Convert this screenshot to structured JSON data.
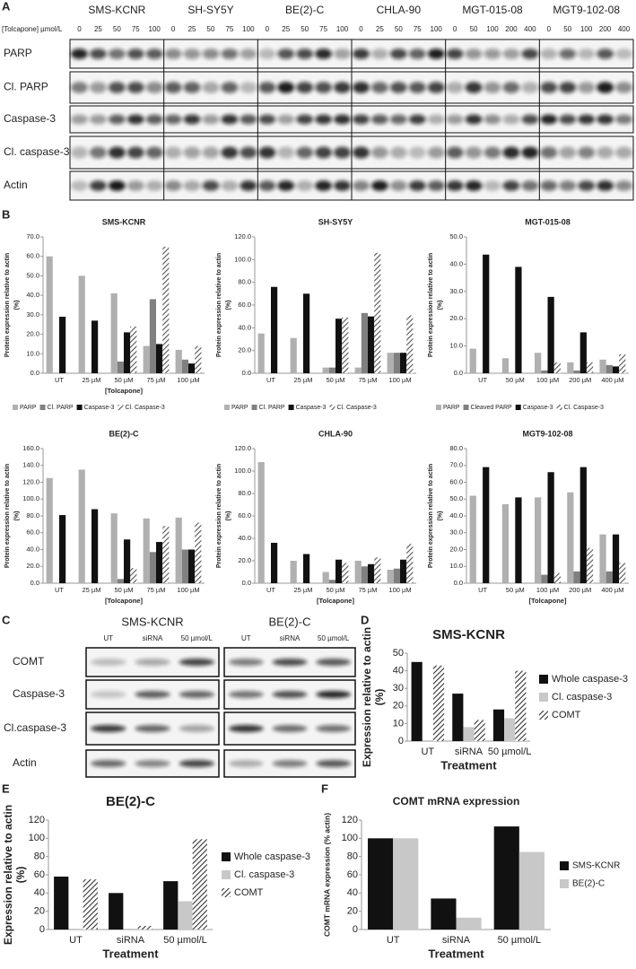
{
  "panel_labels": [
    "A",
    "B",
    "C",
    "D",
    "E",
    "F"
  ],
  "blot_a": {
    "dose_label": "[Tolcapone] µmol/L",
    "cell_lines": [
      {
        "name": "SMS-KCNR",
        "doses": [
          "0",
          "25",
          "50",
          "75",
          "100"
        ]
      },
      {
        "name": "SH-SY5Y",
        "doses": [
          "0",
          "25",
          "50",
          "75",
          "100"
        ]
      },
      {
        "name": "BE(2)-C",
        "doses": [
          "0",
          "25",
          "50",
          "75",
          "100"
        ]
      },
      {
        "name": "CHLA-90",
        "doses": [
          "0",
          "25",
          "50",
          "75",
          "100"
        ]
      },
      {
        "name": "MGT-015-08",
        "doses": [
          "0",
          "50",
          "100",
          "200",
          "400"
        ]
      },
      {
        "name": "MGT9-102-08",
        "doses": [
          "0",
          "50",
          "100",
          "200",
          "400"
        ]
      }
    ],
    "proteins": [
      "PARP",
      "Cl. PARP",
      "Caspase-3",
      "Cl. caspase-3",
      "Actin"
    ]
  },
  "blot_c": {
    "cell_lines": [
      {
        "name": "SMS-KCNR"
      },
      {
        "name": "BE(2)-C"
      }
    ],
    "lanes": [
      "UT",
      "siRNA",
      "50 µmol/L"
    ],
    "proteins": [
      "COMT",
      "Caspase-3",
      "Cl.caspase-3",
      "Actin"
    ]
  },
  "chart_data": [
    {
      "type": "bar",
      "title": "SMS-KCNR",
      "y_label": [
        "Protein expression relative to actin",
        "(%)"
      ],
      "x_label": "[Tolcapone]",
      "legend": "bottom",
      "categories": [
        "UT",
        "25 µM",
        "50 µM",
        "75 µM",
        "100 µM"
      ],
      "ylim": [
        0,
        70
      ],
      "yticks": [
        {
          "value": 0,
          "label": "0.0"
        },
        {
          "value": 10,
          "label": "10.0"
        },
        {
          "value": 20,
          "label": "20.0"
        },
        {
          "value": 30,
          "label": "30.0"
        },
        {
          "value": 40,
          "label": "40.0"
        },
        {
          "value": 50,
          "label": "50.0"
        },
        {
          "value": 60,
          "label": "60.0"
        },
        {
          "value": 70,
          "label": "70.0"
        }
      ],
      "series": [
        {
          "name": "PARP",
          "color": "#b0b0b0",
          "values": [
            60,
            50,
            41,
            14,
            12
          ]
        },
        {
          "name": "Cl. PARP",
          "color": "#808080",
          "values": [
            0,
            0,
            6,
            38,
            7
          ]
        },
        {
          "name": "Caspase-3",
          "color": "#111111",
          "values": [
            29,
            27,
            21,
            15,
            5
          ]
        },
        {
          "name": "Cl. Caspase-3",
          "color": "#555555",
          "hatch": true,
          "values": [
            0,
            0,
            24,
            65,
            14
          ]
        }
      ]
    },
    {
      "type": "bar",
      "title": "SH-SY5Y",
      "y_label": [
        "Protein expression relative to actin",
        "(%)"
      ],
      "legend": "bottom",
      "categories": [
        "UT",
        "25 µM",
        "50 µM",
        "75 µM",
        "100 µM"
      ],
      "ylim": [
        0,
        120
      ],
      "yticks": [
        {
          "value": 0,
          "label": "0.0"
        },
        {
          "value": 20,
          "label": "20.0"
        },
        {
          "value": 40,
          "label": "40.0"
        },
        {
          "value": 60,
          "label": "60.0"
        },
        {
          "value": 80,
          "label": "80.0"
        },
        {
          "value": 100,
          "label": "100.0"
        },
        {
          "value": 120,
          "label": "120.0"
        }
      ],
      "series": [
        {
          "name": "PARP",
          "color": "#b0b0b0",
          "values": [
            35,
            31,
            5,
            5,
            18
          ]
        },
        {
          "name": "Cl. PARP",
          "color": "#808080",
          "values": [
            0,
            0,
            5,
            53,
            18
          ]
        },
        {
          "name": "Caspase-3",
          "color": "#111111",
          "values": [
            76,
            70,
            48,
            50,
            18
          ]
        },
        {
          "name": "Cl. Caspase-3",
          "color": "#555555",
          "hatch": true,
          "values": [
            0,
            0,
            49,
            106,
            51
          ]
        }
      ]
    },
    {
      "type": "bar",
      "title": "MGT-015-08",
      "y_label": [
        "Protein expression relative to actin",
        "(%)"
      ],
      "legend": "bottom",
      "categories": [
        "UT",
        "50 µM",
        "100 µM",
        "200 µM",
        "400 µM"
      ],
      "ylim": [
        0,
        50
      ],
      "yticks": [
        {
          "value": 0,
          "label": "0.0"
        },
        {
          "value": 10,
          "label": "10.0"
        },
        {
          "value": 20,
          "label": "20.0"
        },
        {
          "value": 30,
          "label": "30.0"
        },
        {
          "value": 40,
          "label": "40.0"
        },
        {
          "value": 50,
          "label": "50.0"
        }
      ],
      "series": [
        {
          "name": "PARP",
          "color": "#b0b0b0",
          "values": [
            9,
            5.5,
            7.5,
            4,
            5
          ]
        },
        {
          "name": "Cleaved PARP",
          "color": "#808080",
          "values": [
            0,
            0,
            1,
            1,
            3
          ]
        },
        {
          "name": "Caspase-3",
          "color": "#111111",
          "values": [
            43.5,
            39,
            28,
            15,
            2.5
          ]
        },
        {
          "name": "Cl. Caspase-3",
          "color": "#555555",
          "hatch": true,
          "values": [
            0,
            0,
            4,
            4,
            7
          ]
        }
      ]
    },
    {
      "type": "bar",
      "title": "BE(2)-C",
      "y_label": [
        "Protein expression relative to actin",
        "(%)"
      ],
      "x_label": "[Tolcapone]",
      "categories": [
        "UT",
        "25 µM",
        "50 µM",
        "75 µM",
        "100 µM"
      ],
      "ylim": [
        0,
        160
      ],
      "yticks": [
        {
          "value": 0,
          "label": "0.0"
        },
        {
          "value": 20,
          "label": "20.0"
        },
        {
          "value": 40,
          "label": "40.0"
        },
        {
          "value": 60,
          "label": "60.0"
        },
        {
          "value": 80,
          "label": "80.0"
        },
        {
          "value": 100,
          "label": "100.0"
        },
        {
          "value": 120,
          "label": "120.0"
        },
        {
          "value": 140,
          "label": "140.0"
        },
        {
          "value": 160,
          "label": "160.0"
        }
      ],
      "series": [
        {
          "color": "#b0b0b0",
          "values": [
            125,
            135,
            83,
            77,
            78
          ]
        },
        {
          "color": "#808080",
          "values": [
            0,
            0,
            5,
            37,
            40
          ]
        },
        {
          "color": "#111111",
          "values": [
            81,
            88,
            52,
            49,
            40
          ]
        },
        {
          "color": "#555555",
          "hatch": true,
          "values": [
            0,
            0,
            18,
            68,
            72
          ]
        }
      ]
    },
    {
      "type": "bar",
      "title": "CHLA-90",
      "y_label": [
        "Protein expression relative to actin",
        "(%)"
      ],
      "x_label": "[Tolcapone]",
      "categories": [
        "UT",
        "25 µM",
        "50 µM",
        "75 µM",
        "100 µM"
      ],
      "ylim": [
        0,
        120
      ],
      "yticks": [
        {
          "value": 0,
          "label": "0.0"
        },
        {
          "value": 20,
          "label": "20.0"
        },
        {
          "value": 40,
          "label": "40.0"
        },
        {
          "value": 60,
          "label": "60.0"
        },
        {
          "value": 80,
          "label": "80.0"
        },
        {
          "value": 100,
          "label": "100.0"
        },
        {
          "value": 120,
          "label": "120.0"
        }
      ],
      "series": [
        {
          "color": "#b0b0b0",
          "values": [
            108,
            20,
            10,
            20,
            12
          ]
        },
        {
          "color": "#808080",
          "values": [
            0,
            0,
            3,
            15,
            13
          ]
        },
        {
          "color": "#111111",
          "values": [
            36,
            26,
            21,
            17,
            21
          ]
        },
        {
          "color": "#555555",
          "hatch": true,
          "values": [
            0,
            0,
            18,
            23,
            35
          ]
        }
      ]
    },
    {
      "type": "bar",
      "title": "MGT9-102-08",
      "y_label": [
        "Protein expression relative to actin",
        "(%)"
      ],
      "x_label": "[Tolcapone]",
      "categories": [
        "UT",
        "50 µM",
        "100 µM",
        "200 µM",
        "400 µM"
      ],
      "ylim": [
        0,
        80
      ],
      "yticks": [
        {
          "value": 0,
          "label": "0.0"
        },
        {
          "value": 10,
          "label": "10.0"
        },
        {
          "value": 20,
          "label": "20.0"
        },
        {
          "value": 30,
          "label": "30.0"
        },
        {
          "value": 40,
          "label": "40.0"
        },
        {
          "value": 50,
          "label": "50.0"
        },
        {
          "value": 60,
          "label": "60.0"
        },
        {
          "value": 70,
          "label": "70.0"
        },
        {
          "value": 80,
          "label": "80.0"
        }
      ],
      "series": [
        {
          "color": "#b0b0b0",
          "values": [
            52,
            47,
            51,
            54,
            29
          ]
        },
        {
          "color": "#808080",
          "values": [
            0,
            0,
            5,
            7,
            7
          ]
        },
        {
          "color": "#111111",
          "values": [
            69,
            51,
            66,
            69,
            29
          ]
        },
        {
          "color": "#555555",
          "hatch": true,
          "values": [
            0,
            0,
            6,
            21,
            12
          ]
        }
      ]
    },
    {
      "type": "bar",
      "title": "SMS-KCNR",
      "y_label": [
        "Expression relative to actin",
        "(%)"
      ],
      "x_label": "Treatment",
      "legend": "right",
      "categories": [
        "UT",
        "siRNA",
        "50 µmol/L"
      ],
      "ylim": [
        0,
        50
      ],
      "yticks": [
        0,
        10,
        20,
        30,
        40,
        50
      ],
      "series": [
        {
          "name": "Whole caspase-3",
          "color": "#111111",
          "values": [
            45,
            27,
            18
          ]
        },
        {
          "name": "Cl. caspase-3",
          "color": "#c8c8c8",
          "values": [
            0,
            8,
            13
          ]
        },
        {
          "name": "COMT",
          "color": "#333333",
          "hatch": true,
          "values": [
            43,
            12,
            40
          ]
        }
      ]
    },
    {
      "type": "bar",
      "title": "BE(2)-C",
      "y_label": [
        "Expression relative to actin",
        "(%)"
      ],
      "x_label": "Treatment",
      "legend": "right",
      "categories": [
        "UT",
        "siRNA",
        "50 µmol/L"
      ],
      "ylim": [
        0,
        120
      ],
      "yticks": [
        0,
        20,
        40,
        60,
        80,
        100,
        120
      ],
      "series": [
        {
          "name": "Whole caspase-3",
          "color": "#111111",
          "values": [
            58,
            40,
            53
          ]
        },
        {
          "name": "Cl. caspase-3",
          "color": "#c8c8c8",
          "values": [
            0,
            0,
            31
          ]
        },
        {
          "name": "COMT",
          "color": "#333333",
          "hatch": true,
          "values": [
            55,
            4,
            99
          ]
        }
      ]
    },
    {
      "type": "bar",
      "title": "COMT mRNA expression",
      "y_label": [
        "COMT mRNA expression (% actin)"
      ],
      "x_label": "Treatment",
      "legend": "right",
      "categories": [
        "UT",
        "siRNA",
        "50 µmol/L"
      ],
      "ylim": [
        0,
        120
      ],
      "yticks": [
        0,
        20,
        40,
        60,
        80,
        100,
        120
      ],
      "series": [
        {
          "name": "SMS-KCNR",
          "color": "#111111",
          "values": [
            100,
            34,
            113
          ]
        },
        {
          "name": "BE(2)-C",
          "color": "#c8c8c8",
          "values": [
            100,
            13,
            85
          ]
        }
      ]
    }
  ]
}
